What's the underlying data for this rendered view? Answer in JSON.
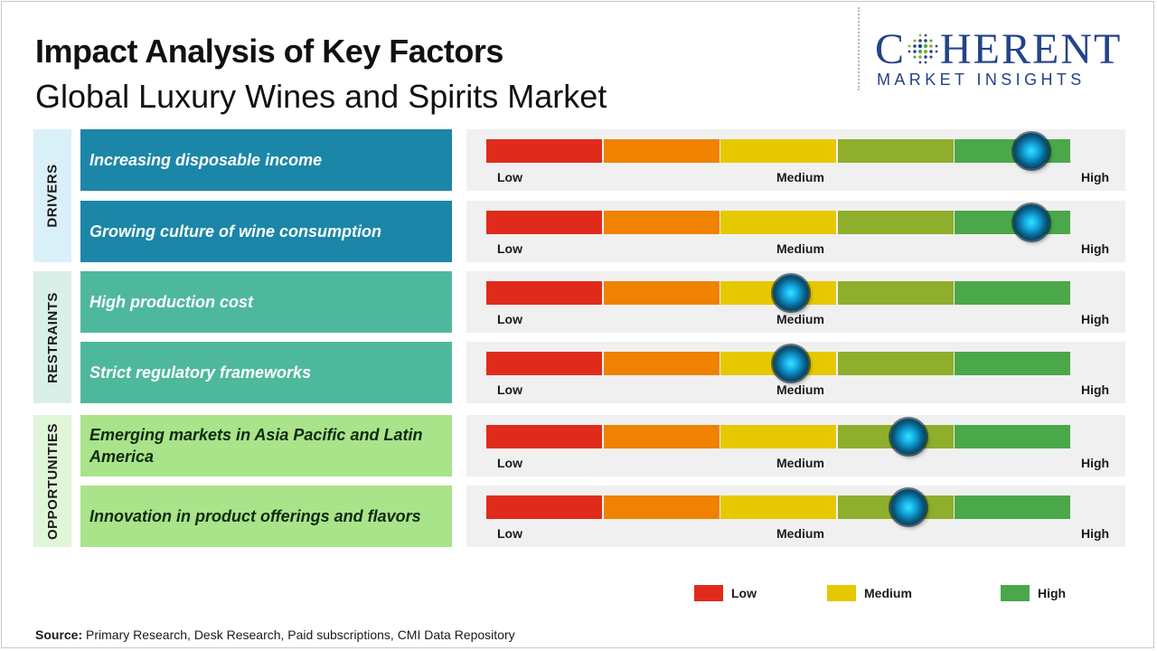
{
  "header": {
    "title": "Impact Analysis of Key Factors",
    "subtitle": "Global Luxury Wines and Spirits Market"
  },
  "logo": {
    "word_start": "C",
    "word_end": "HERENT",
    "tagline": "MARKET INSIGHTS"
  },
  "colors": {
    "seg_red": "#e02b1c",
    "seg_orange": "#ef8200",
    "seg_yellow": "#e6c800",
    "seg_lightgreen": "#8fae2b",
    "seg_green": "#4aa84a",
    "drivers_box": "#1b86a8",
    "drivers_cat": "#daf0f8",
    "restraints_box": "#4eb89c",
    "restraints_cat": "#d9efe8",
    "opportunities_box": "#a9e38a",
    "opportunities_cat": "#e1f5d8"
  },
  "scale_labels": {
    "low": "Low",
    "medium": "Medium",
    "high": "High"
  },
  "chart_data": {
    "type": "table",
    "scale": [
      "Low",
      "Medium",
      "High"
    ],
    "categories": [
      {
        "name": "DRIVERS",
        "factors": [
          {
            "label": "Increasing disposable income",
            "impact": 0.93
          },
          {
            "label": "Growing culture of wine consumption",
            "impact": 0.93
          }
        ]
      },
      {
        "name": "RESTRAINTS",
        "factors": [
          {
            "label": "High production cost",
            "impact": 0.52
          },
          {
            "label": "Strict regulatory frameworks",
            "impact": 0.52
          }
        ]
      },
      {
        "name": "OPPORTUNITIES",
        "factors": [
          {
            "label": "Emerging markets in Asia Pacific and Latin America",
            "impact": 0.72
          },
          {
            "label": "Innovation in product offerings and flavors",
            "impact": 0.72
          }
        ]
      }
    ],
    "legend": [
      {
        "label": "Low",
        "color": "#e02b1c"
      },
      {
        "label": "Medium",
        "color": "#e6c800"
      },
      {
        "label": "High",
        "color": "#4aa84a"
      }
    ]
  },
  "source": {
    "label": "Source:",
    "text": " Primary Research, Desk Research, Paid subscriptions, CMI Data Repository"
  }
}
